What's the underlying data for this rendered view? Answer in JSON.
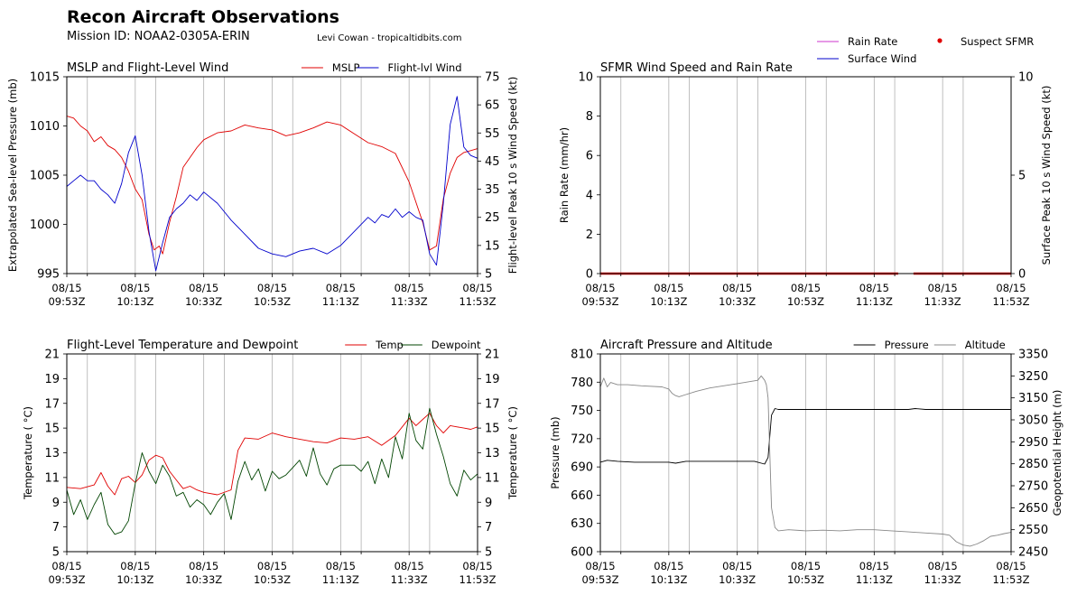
{
  "figure": {
    "title": "Recon Aircraft Observations",
    "mission": "Mission ID: NOAA2-0305A-ERIN",
    "credit": "Levi Cowan - tropicaltidbits.com",
    "legend": [
      {
        "label": "Rain Rate",
        "color": "#cc33cc",
        "kind": "line"
      },
      {
        "label": "Surface Wind",
        "color": "#0000cc",
        "kind": "line"
      },
      {
        "label": "Suspect SFMR",
        "color": "#e00000",
        "kind": "dot"
      }
    ]
  },
  "time_ticks": [
    {
      "date": "08/15",
      "time": "09:53Z"
    },
    {
      "date": "08/15",
      "time": "10:13Z"
    },
    {
      "date": "08/15",
      "time": "10:33Z"
    },
    {
      "date": "08/15",
      "time": "10:53Z"
    },
    {
      "date": "08/15",
      "time": "11:13Z"
    },
    {
      "date": "08/15",
      "time": "11:33Z"
    },
    {
      "date": "08/15",
      "time": "11:53Z"
    }
  ],
  "chart_data": [
    {
      "type": "line",
      "title": "MSLP and Flight-Level Wind",
      "x_unit": "minutes after 09:53Z",
      "xlim": [
        0,
        120
      ],
      "grid_x": true,
      "legend_loc": "top-right",
      "left_axis": {
        "label": "Extrapolated Sea-level Pressure (mb)",
        "ylim": [
          995,
          1015
        ],
        "ticks": [
          995,
          1000,
          1005,
          1010,
          1015
        ]
      },
      "right_axis": {
        "label": "Flight-level Peak 10 s Wind Speed (kt)",
        "ylim": [
          5,
          75
        ],
        "ticks": [
          5,
          15,
          25,
          35,
          45,
          55,
          65,
          75
        ]
      },
      "series": [
        {
          "name": "MSLP",
          "axis": "left",
          "color": "#e00000",
          "x": [
            0,
            2,
            4,
            6,
            8,
            10,
            12,
            14,
            16,
            18,
            20,
            22,
            24,
            25.5,
            27,
            28,
            30,
            32,
            34,
            36,
            38,
            40,
            44,
            48,
            52,
            56,
            60,
            64,
            68,
            72,
            76,
            80,
            84,
            88,
            92,
            96,
            100,
            104,
            106,
            108,
            110,
            112,
            114,
            116,
            118,
            120
          ],
          "y": [
            1011,
            1010.8,
            1010,
            1009.5,
            1008.4,
            1008.9,
            1008,
            1007.6,
            1006.8,
            1005.4,
            1003.6,
            1002.5,
            999,
            997.4,
            997.8,
            997,
            1000.2,
            1002.8,
            1005.8,
            1006.8,
            1007.8,
            1008.6,
            1009.3,
            1009.5,
            1010.1,
            1009.8,
            1009.6,
            1009,
            1009.3,
            1009.8,
            1010.4,
            1010.1,
            1009.2,
            1008.3,
            1007.9,
            1007.2,
            1004.3,
            1000.2,
            997.4,
            997.8,
            1002.6,
            1005.2,
            1006.8,
            1007.3,
            1007.5,
            1007.7
          ]
        },
        {
          "name": "Flight-lvl Wind",
          "axis": "right",
          "color": "#0000cc",
          "x": [
            0,
            2,
            4,
            6,
            8,
            10,
            12,
            14,
            16,
            18,
            20,
            22,
            24,
            26,
            28,
            30,
            32,
            34,
            36,
            38,
            40,
            44,
            48,
            52,
            56,
            60,
            64,
            68,
            72,
            76,
            80,
            84,
            88,
            90,
            92,
            94,
            96,
            98,
            100,
            102,
            104,
            106,
            108,
            110,
            112,
            114,
            116,
            118,
            120
          ],
          "y": [
            36,
            38,
            40,
            38,
            38,
            35,
            33,
            30,
            37,
            48,
            54,
            40,
            20,
            6,
            16,
            25,
            28,
            30,
            33,
            31,
            34,
            30,
            24,
            19,
            14,
            12,
            11,
            13,
            14,
            12,
            15,
            20,
            25,
            23,
            26,
            25,
            28,
            25,
            27,
            25,
            24,
            12,
            8,
            30,
            58,
            68,
            50,
            47,
            46
          ]
        }
      ]
    },
    {
      "type": "line",
      "title": "SFMR Wind Speed and Rain Rate",
      "x_unit": "minutes after 09:53Z",
      "xlim": [
        0,
        120
      ],
      "grid_x": true,
      "left_axis": {
        "label": "Rain Rate (mm/hr)",
        "ylim": [
          0,
          10
        ],
        "ticks": [
          0,
          2,
          4,
          6,
          8,
          10
        ]
      },
      "right_axis": {
        "label": "Surface Peak 10 s Wind Speed (kt)",
        "ylim": [
          0,
          10
        ],
        "ticks": [
          0,
          5,
          10
        ]
      },
      "series": [
        {
          "name": "Suspect SFMR",
          "axis": "right",
          "color": "#e00000",
          "segments": [
            {
              "x": [
                0,
                87
              ],
              "y": [
                0,
                0
              ]
            },
            {
              "x": [
                91.5,
                120
              ],
              "y": [
                0,
                0
              ]
            }
          ]
        }
      ]
    },
    {
      "type": "line",
      "title": "Flight-Level Temperature and Dewpoint",
      "x_unit": "minutes after 09:53Z",
      "xlim": [
        0,
        120
      ],
      "grid_x": true,
      "legend_loc": "top-right",
      "left_axis": {
        "label": "Temperature ($^\\circ C$)",
        "ylim": [
          5,
          21
        ],
        "ticks": [
          5,
          7,
          9,
          11,
          13,
          15,
          17,
          19,
          21
        ]
      },
      "right_axis": {
        "label": "Temperature ($^\\circ C$)",
        "ylim": [
          5,
          21
        ],
        "ticks": [
          5,
          7,
          9,
          11,
          13,
          15,
          17,
          19,
          21
        ]
      },
      "series": [
        {
          "name": "Temp",
          "axis": "left",
          "color": "#e00000",
          "x": [
            0,
            4,
            8,
            10,
            12,
            14,
            16,
            18,
            20,
            22,
            24,
            26,
            28,
            30,
            32,
            34,
            36,
            38,
            40,
            44,
            48,
            50,
            52,
            56,
            60,
            64,
            68,
            72,
            76,
            80,
            84,
            88,
            92,
            96,
            100,
            102,
            104,
            106,
            108,
            110,
            112,
            114,
            116,
            118,
            120
          ],
          "y": [
            10.2,
            10.1,
            10.4,
            11.4,
            10.3,
            9.6,
            10.9,
            11.1,
            10.6,
            11.2,
            12.4,
            12.8,
            12.6,
            11.5,
            10.8,
            10.1,
            10.3,
            10,
            9.8,
            9.6,
            10,
            13.2,
            14.2,
            14.1,
            14.6,
            14.3,
            14.1,
            13.9,
            13.8,
            14.2,
            14.1,
            14.3,
            13.6,
            14.4,
            15.8,
            15.2,
            15.7,
            16.2,
            15.2,
            14.6,
            15.2,
            15.1,
            15.0,
            14.9,
            15.1
          ]
        },
        {
          "name": "Dewpoint",
          "axis": "left",
          "color": "#004400",
          "x": [
            0,
            2,
            4,
            6,
            8,
            10,
            12,
            14,
            16,
            18,
            20,
            22,
            24,
            26,
            28,
            30,
            32,
            34,
            36,
            38,
            40,
            42,
            44,
            46,
            48,
            50,
            52,
            54,
            56,
            58,
            60,
            62,
            64,
            66,
            68,
            70,
            72,
            74,
            76,
            78,
            80,
            82,
            84,
            86,
            88,
            90,
            92,
            94,
            96,
            98,
            100,
            102,
            104,
            106,
            108,
            110,
            112,
            114,
            116,
            118,
            120
          ],
          "y": [
            10,
            8,
            9.2,
            7.6,
            8.8,
            9.8,
            7.2,
            6.4,
            6.6,
            7.5,
            10.5,
            13,
            11.5,
            10.5,
            12,
            11.1,
            9.5,
            9.8,
            8.6,
            9.2,
            8.8,
            8,
            9,
            9.7,
            7.6,
            10.7,
            12.3,
            10.8,
            11.7,
            9.9,
            11.5,
            10.9,
            11.2,
            11.8,
            12.4,
            11.1,
            13.4,
            11.3,
            10.4,
            11.7,
            12,
            12,
            12,
            11.5,
            12.3,
            10.5,
            12.5,
            11,
            14.3,
            12.5,
            16.2,
            14,
            13.3,
            16.6,
            14.5,
            12.7,
            10.5,
            9.5,
            11.6,
            10.8,
            11.3
          ]
        }
      ]
    },
    {
      "type": "line",
      "title": "Aircraft Pressure and Altitude",
      "x_unit": "minutes after 09:53Z",
      "xlim": [
        0,
        120
      ],
      "grid_x": true,
      "legend_loc": "top-right",
      "left_axis": {
        "label": "Pressure (mb)",
        "ylim": [
          600,
          810
        ],
        "ticks": [
          600,
          630,
          660,
          690,
          720,
          750,
          780,
          810
        ]
      },
      "right_axis": {
        "label": "Geopotential Height (m)",
        "ylim": [
          2450,
          3350
        ],
        "ticks": [
          2450,
          2550,
          2650,
          2750,
          2850,
          2950,
          3050,
          3150,
          3250,
          3350
        ]
      },
      "series": [
        {
          "name": "Pressure",
          "axis": "left",
          "color": "#000000",
          "x": [
            0,
            2,
            5,
            10,
            15,
            20,
            22,
            25,
            30,
            35,
            40,
            45,
            48,
            49,
            50,
            51,
            52,
            55,
            60,
            70,
            80,
            90,
            92,
            95,
            100,
            105,
            110,
            115,
            120
          ],
          "y": [
            695,
            697,
            696,
            695,
            695,
            695,
            694,
            696,
            696,
            696,
            696,
            696,
            693,
            700,
            745,
            752,
            751,
            751,
            751,
            751,
            751,
            751,
            752,
            751,
            751,
            751,
            751,
            751,
            751
          ]
        },
        {
          "name": "Altitude",
          "axis": "right",
          "color": "#888888",
          "x": [
            0,
            1,
            2,
            3,
            5,
            8,
            12,
            18,
            20,
            21,
            22,
            23,
            25,
            28,
            32,
            36,
            40,
            44,
            46,
            47,
            48,
            48.5,
            49,
            49.5,
            50,
            51,
            52,
            55,
            60,
            65,
            70,
            75,
            80,
            85,
            90,
            95,
            100,
            102,
            104,
            106,
            108,
            110,
            112,
            114,
            116,
            118,
            120
          ],
          "y": [
            3200,
            3240,
            3200,
            3220,
            3210,
            3210,
            3205,
            3200,
            3190,
            3170,
            3160,
            3155,
            3165,
            3180,
            3195,
            3205,
            3215,
            3225,
            3230,
            3250,
            3230,
            3210,
            3150,
            2900,
            2650,
            2560,
            2545,
            2550,
            2545,
            2548,
            2545,
            2550,
            2550,
            2545,
            2540,
            2535,
            2530,
            2525,
            2495,
            2480,
            2475,
            2485,
            2500,
            2520,
            2525,
            2532,
            2538
          ]
        }
      ]
    }
  ]
}
